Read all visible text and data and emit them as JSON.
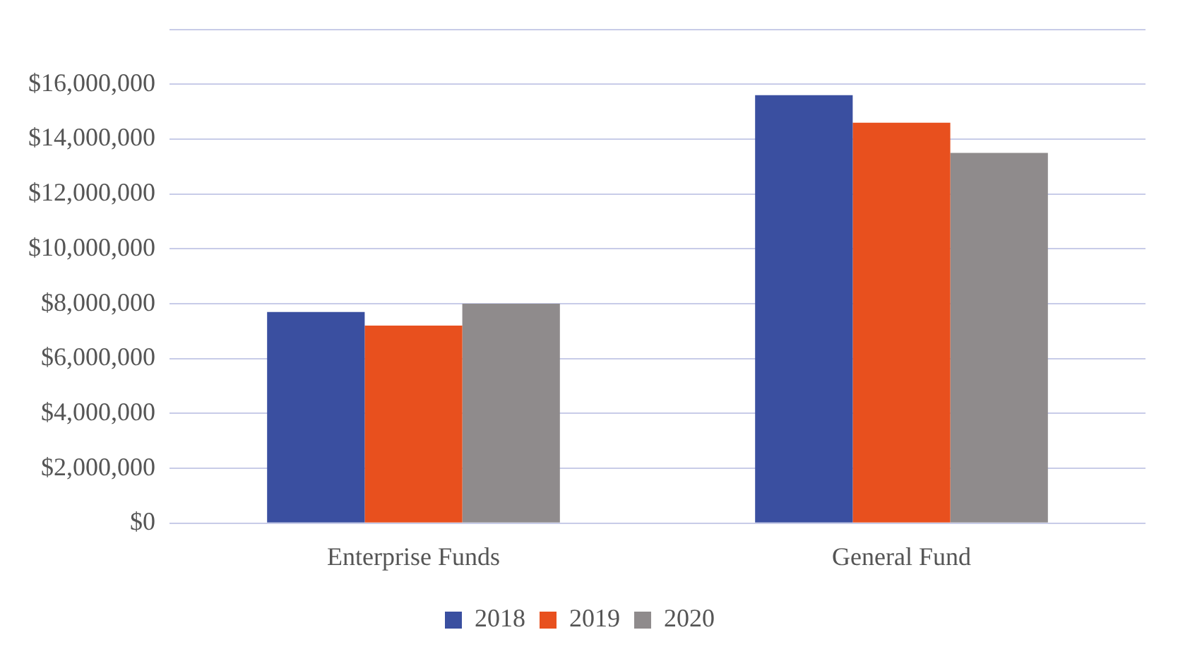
{
  "chart_data": {
    "type": "bar",
    "categories": [
      "Enterprise Funds",
      "General Fund"
    ],
    "series": [
      {
        "name": "2018",
        "color": "#3a4fa0",
        "values": [
          7700000,
          15600000
        ]
      },
      {
        "name": "2019",
        "color": "#e8501e",
        "values": [
          7200000,
          14600000
        ]
      },
      {
        "name": "2020",
        "color": "#8f8b8c",
        "values": [
          8000000,
          13500000
        ]
      }
    ],
    "ylim": [
      0,
      18000000
    ],
    "yticks": [
      {
        "value": 0,
        "label": "$0"
      },
      {
        "value": 2000000,
        "label": "$2,000,000"
      },
      {
        "value": 4000000,
        "label": "$4,000,000"
      },
      {
        "value": 6000000,
        "label": "$6,000,000"
      },
      {
        "value": 8000000,
        "label": "$8,000,000"
      },
      {
        "value": 10000000,
        "label": "$10,000,000"
      },
      {
        "value": 12000000,
        "label": "$12,000,000"
      },
      {
        "value": 14000000,
        "label": "$14,000,000"
      },
      {
        "value": 16000000,
        "label": "$16,000,000"
      },
      {
        "value": 18000000,
        "label": null
      }
    ],
    "grid": "y",
    "legend": "bottom"
  }
}
